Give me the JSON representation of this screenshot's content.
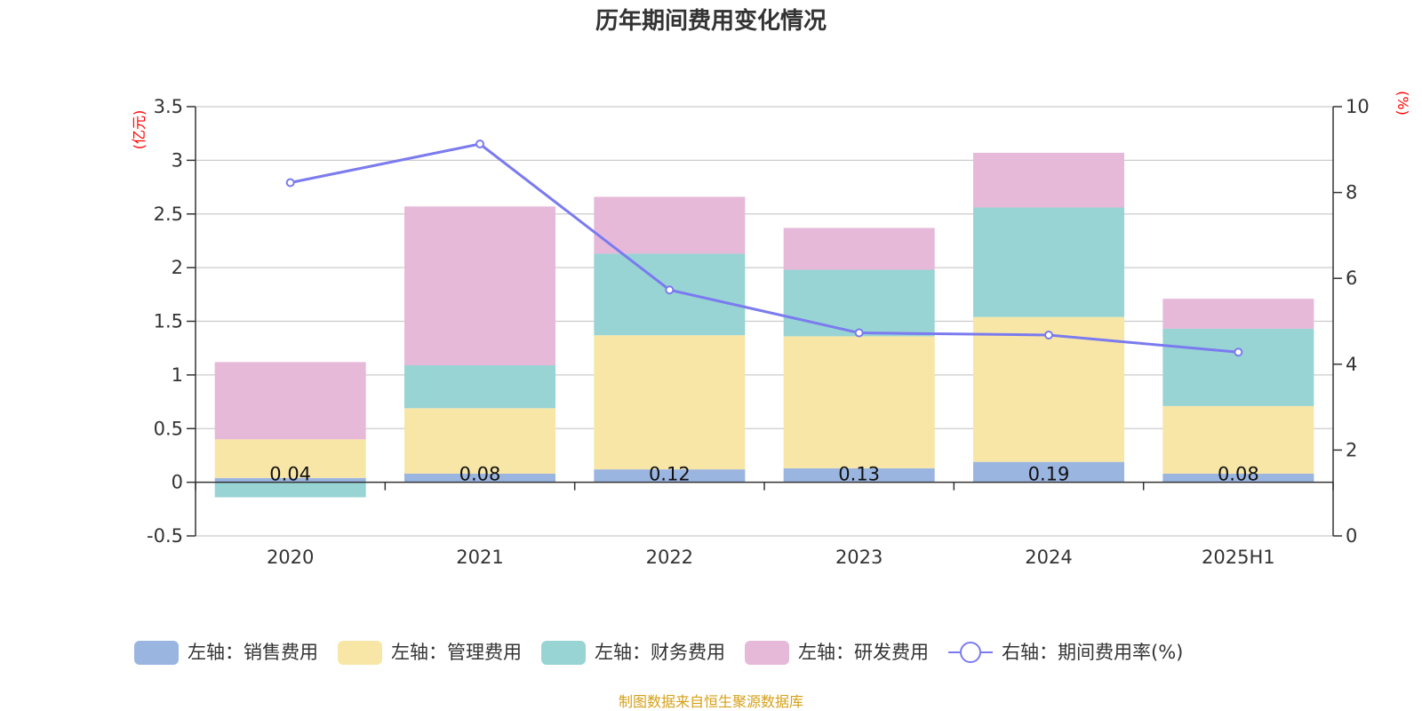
{
  "chart_data": {
    "type": "bar",
    "stacked": true,
    "title": "历年期间费用变化情况",
    "categories": [
      "2020",
      "2021",
      "2022",
      "2023",
      "2024",
      "2025H1"
    ],
    "left_axis": {
      "unit": "(亿元)",
      "ylim": [
        -0.5,
        3.5
      ],
      "ticks": [
        "3.5",
        "3",
        "2.5",
        "2",
        "1.5",
        "1",
        "0.5",
        "0",
        "-0.5"
      ],
      "tick_values": [
        3.5,
        3,
        2.5,
        2,
        1.5,
        1,
        0.5,
        0,
        -0.5
      ]
    },
    "right_axis": {
      "unit": "(%)",
      "ylim": [
        0,
        10
      ],
      "ticks": [
        "10",
        "8",
        "6",
        "4",
        "2",
        "0"
      ],
      "tick_values": [
        10,
        8,
        6,
        4,
        2,
        0
      ]
    },
    "grid": true,
    "series": [
      {
        "name": "左轴：销售费用",
        "axis": "left",
        "color": "#9bb5e1",
        "values": [
          0.04,
          0.08,
          0.12,
          0.13,
          0.19,
          0.08
        ],
        "labels": [
          "0.04",
          "0.08",
          "0.12",
          "0.13",
          "0.19",
          "0.08"
        ]
      },
      {
        "name": "左轴：管理费用",
        "axis": "left",
        "color": "#f8e6a7",
        "values": [
          0.36,
          0.61,
          1.25,
          1.23,
          1.35,
          0.63
        ]
      },
      {
        "name": "左轴：财务费用",
        "axis": "left",
        "color": "#98d4d4",
        "values": [
          -0.14,
          0.4,
          0.76,
          0.62,
          1.02,
          0.72
        ]
      },
      {
        "name": "左轴：研发费用",
        "axis": "left",
        "color": "#e6b9d9",
        "values": [
          0.72,
          1.48,
          0.53,
          0.39,
          0.51,
          0.28
        ]
      }
    ],
    "line": {
      "name": "右轴：期间费用率(%)",
      "axis": "right",
      "color": "#7b7bef",
      "values": [
        8.23,
        9.13,
        5.73,
        4.73,
        4.68,
        4.28
      ]
    },
    "legend_position": "bottom",
    "source_note": "制图数据来自恒生聚源数据库"
  }
}
